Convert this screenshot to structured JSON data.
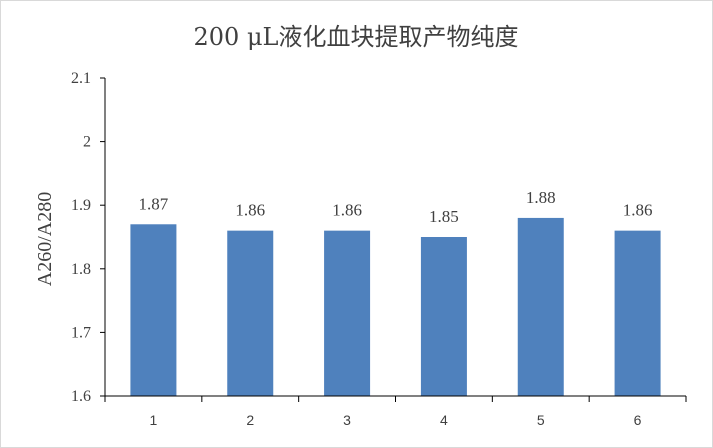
{
  "chart_data": {
    "type": "bar",
    "title": "200 μL液化血块提取产物纯度",
    "xlabel": "",
    "ylabel": "A260/A280",
    "categories": [
      "1",
      "2",
      "3",
      "4",
      "5",
      "6"
    ],
    "values": [
      1.87,
      1.86,
      1.86,
      1.85,
      1.88,
      1.86
    ],
    "data_labels": [
      "1.87",
      "1.86",
      "1.86",
      "1.85",
      "1.88",
      "1.86"
    ],
    "ylim": [
      1.6,
      2.1
    ],
    "yticks": [
      "1.6",
      "1.7",
      "1.8",
      "1.9",
      "2",
      "2.1"
    ],
    "grid": false,
    "legend": "none",
    "colors": {
      "bar": "#4f81bd",
      "axis": "#000000",
      "text": "#404040"
    }
  }
}
